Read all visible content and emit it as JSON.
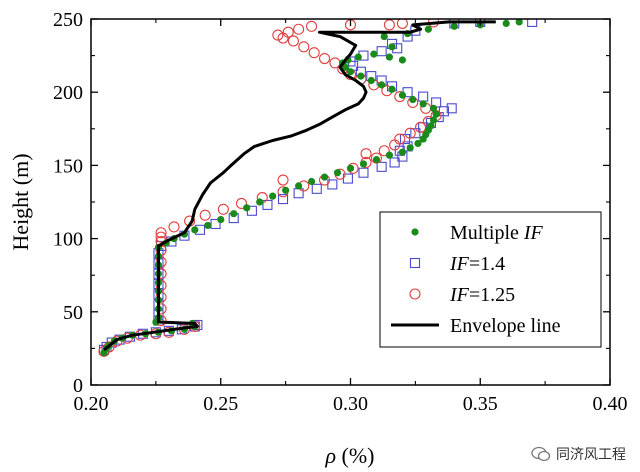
{
  "chart_data": {
    "type": "scatter",
    "xlabel_symbol": "ρ",
    "xlabel_unit": " (%)",
    "ylabel": "Height (m)",
    "xlim": [
      0.2,
      0.4
    ],
    "ylim": [
      0,
      250
    ],
    "xticks": [
      "0.20",
      "0.25",
      "0.30",
      "0.35",
      "0.40"
    ],
    "yticks": [
      "0",
      "50",
      "100",
      "150",
      "200",
      "250"
    ],
    "legend_position": "lower-right",
    "series": [
      {
        "name": "Multiple IF",
        "legend_plain": "Multiple ",
        "legend_italic": "IF",
        "legend_rest": "",
        "marker": "dot",
        "color": "#1a8a1a",
        "points": [
          [
            0.205,
            22
          ],
          [
            0.206,
            25
          ],
          [
            0.207,
            27
          ],
          [
            0.209,
            30
          ],
          [
            0.212,
            32
          ],
          [
            0.216,
            34
          ],
          [
            0.221,
            35
          ],
          [
            0.226,
            36
          ],
          [
            0.231,
            37
          ],
          [
            0.236,
            38
          ],
          [
            0.24,
            40
          ],
          [
            0.239,
            42
          ],
          [
            0.225,
            43
          ],
          [
            0.226,
            46
          ],
          [
            0.226,
            52
          ],
          [
            0.226,
            58
          ],
          [
            0.226,
            64
          ],
          [
            0.226,
            70
          ],
          [
            0.226,
            76
          ],
          [
            0.226,
            82
          ],
          [
            0.226,
            88
          ],
          [
            0.226,
            94
          ],
          [
            0.229,
            97
          ],
          [
            0.232,
            100
          ],
          [
            0.236,
            103
          ],
          [
            0.24,
            106
          ],
          [
            0.245,
            109
          ],
          [
            0.25,
            113
          ],
          [
            0.255,
            117
          ],
          [
            0.26,
            121
          ],
          [
            0.265,
            125
          ],
          [
            0.27,
            129
          ],
          [
            0.275,
            133
          ],
          [
            0.28,
            136
          ],
          [
            0.285,
            139
          ],
          [
            0.29,
            142
          ],
          [
            0.295,
            145
          ],
          [
            0.3,
            148
          ],
          [
            0.305,
            151
          ],
          [
            0.31,
            154
          ],
          [
            0.315,
            157
          ],
          [
            0.32,
            159
          ],
          [
            0.323,
            162
          ],
          [
            0.326,
            165
          ],
          [
            0.328,
            168
          ],
          [
            0.329,
            171
          ],
          [
            0.33,
            174
          ],
          [
            0.331,
            177
          ],
          [
            0.332,
            181
          ],
          [
            0.333,
            185
          ],
          [
            0.332,
            189
          ],
          [
            0.328,
            192
          ],
          [
            0.324,
            195
          ],
          [
            0.32,
            198
          ],
          [
            0.316,
            202
          ],
          [
            0.312,
            205
          ],
          [
            0.308,
            208
          ],
          [
            0.304,
            211
          ],
          [
            0.3,
            214
          ],
          [
            0.298,
            217
          ],
          [
            0.297,
            220
          ],
          [
            0.299,
            222
          ],
          [
            0.303,
            224
          ],
          [
            0.309,
            226
          ],
          [
            0.315,
            224
          ],
          [
            0.32,
            222
          ],
          [
            0.316,
            231
          ],
          [
            0.313,
            238
          ],
          [
            0.322,
            240
          ],
          [
            0.33,
            243
          ],
          [
            0.34,
            245
          ],
          [
            0.35,
            246
          ],
          [
            0.36,
            247
          ],
          [
            0.365,
            248
          ]
        ]
      },
      {
        "name": "IF=1.4",
        "legend_plain": "",
        "legend_italic": "IF",
        "legend_rest": "=1.4",
        "marker": "square",
        "color": "#4a4ad0",
        "points": [
          [
            0.205,
            24
          ],
          [
            0.206,
            26
          ],
          [
            0.208,
            29
          ],
          [
            0.211,
            31
          ],
          [
            0.215,
            33
          ],
          [
            0.22,
            35
          ],
          [
            0.225,
            36
          ],
          [
            0.23,
            37
          ],
          [
            0.235,
            38
          ],
          [
            0.24,
            40
          ],
          [
            0.241,
            41
          ],
          [
            0.226,
            44
          ],
          [
            0.226,
            48
          ],
          [
            0.226,
            55
          ],
          [
            0.226,
            62
          ],
          [
            0.226,
            69
          ],
          [
            0.226,
            76
          ],
          [
            0.226,
            83
          ],
          [
            0.226,
            90
          ],
          [
            0.227,
            95
          ],
          [
            0.231,
            98
          ],
          [
            0.236,
            102
          ],
          [
            0.242,
            106
          ],
          [
            0.248,
            110
          ],
          [
            0.255,
            114
          ],
          [
            0.262,
            119
          ],
          [
            0.268,
            123
          ],
          [
            0.274,
            127
          ],
          [
            0.28,
            131
          ],
          [
            0.287,
            134
          ],
          [
            0.293,
            137
          ],
          [
            0.299,
            141
          ],
          [
            0.305,
            145
          ],
          [
            0.312,
            149
          ],
          [
            0.317,
            152
          ],
          [
            0.32,
            156
          ],
          [
            0.319,
            160
          ],
          [
            0.322,
            163
          ],
          [
            0.321,
            168
          ],
          [
            0.325,
            172
          ],
          [
            0.328,
            176
          ],
          [
            0.331,
            179
          ],
          [
            0.334,
            183
          ],
          [
            0.336,
            187
          ],
          [
            0.339,
            189
          ],
          [
            0.333,
            193
          ],
          [
            0.328,
            197
          ],
          [
            0.322,
            200
          ],
          [
            0.316,
            204
          ],
          [
            0.312,
            208
          ],
          [
            0.308,
            211
          ],
          [
            0.304,
            214
          ],
          [
            0.301,
            218
          ],
          [
            0.3,
            221
          ],
          [
            0.305,
            225
          ],
          [
            0.312,
            228
          ],
          [
            0.318,
            230
          ],
          [
            0.316,
            233
          ],
          [
            0.322,
            238
          ],
          [
            0.325,
            242
          ],
          [
            0.34,
            247
          ],
          [
            0.35,
            248
          ],
          [
            0.37,
            248
          ]
        ]
      },
      {
        "name": "IF=1.25",
        "legend_plain": "",
        "legend_italic": "IF",
        "legend_rest": "=1.25",
        "marker": "circle",
        "color": "#e04040",
        "points": [
          [
            0.205,
            23
          ],
          [
            0.207,
            26
          ],
          [
            0.21,
            30
          ],
          [
            0.214,
            32
          ],
          [
            0.219,
            34
          ],
          [
            0.225,
            35
          ],
          [
            0.23,
            36
          ],
          [
            0.236,
            38
          ],
          [
            0.24,
            40
          ],
          [
            0.227,
            44
          ],
          [
            0.227,
            52
          ],
          [
            0.227,
            60
          ],
          [
            0.227,
            68
          ],
          [
            0.227,
            76
          ],
          [
            0.227,
            84
          ],
          [
            0.227,
            92
          ],
          [
            0.227,
            98
          ],
          [
            0.227,
            101
          ],
          [
            0.227,
            104
          ],
          [
            0.232,
            108
          ],
          [
            0.238,
            112
          ],
          [
            0.244,
            116
          ],
          [
            0.251,
            120
          ],
          [
            0.258,
            124
          ],
          [
            0.266,
            128
          ],
          [
            0.274,
            132
          ],
          [
            0.274,
            140
          ],
          [
            0.282,
            136
          ],
          [
            0.29,
            140
          ],
          [
            0.296,
            144
          ],
          [
            0.301,
            148
          ],
          [
            0.306,
            152
          ],
          [
            0.31,
            155
          ],
          [
            0.306,
            158
          ],
          [
            0.313,
            160
          ],
          [
            0.317,
            164
          ],
          [
            0.319,
            168
          ],
          [
            0.323,
            172
          ],
          [
            0.327,
            176
          ],
          [
            0.33,
            180
          ],
          [
            0.333,
            184
          ],
          [
            0.329,
            189
          ],
          [
            0.324,
            193
          ],
          [
            0.319,
            197
          ],
          [
            0.314,
            201
          ],
          [
            0.309,
            205
          ],
          [
            0.304,
            209
          ],
          [
            0.3,
            212
          ],
          [
            0.297,
            216
          ],
          [
            0.294,
            220
          ],
          [
            0.29,
            223
          ],
          [
            0.286,
            227
          ],
          [
            0.282,
            231
          ],
          [
            0.278,
            235
          ],
          [
            0.274,
            237
          ],
          [
            0.272,
            239
          ],
          [
            0.276,
            241
          ],
          [
            0.28,
            243
          ],
          [
            0.285,
            245
          ],
          [
            0.3,
            246
          ],
          [
            0.315,
            246
          ],
          [
            0.32,
            247
          ],
          [
            0.332,
            248
          ]
        ]
      },
      {
        "name": "Envelope line",
        "legend_plain": "Envelope line",
        "legend_italic": "",
        "legend_rest": "",
        "marker": "line",
        "color": "#000000",
        "points": [
          [
            0.205,
            24
          ],
          [
            0.21,
            31
          ],
          [
            0.216,
            34
          ],
          [
            0.224,
            36
          ],
          [
            0.232,
            38
          ],
          [
            0.241,
            40
          ],
          [
            0.24,
            42
          ],
          [
            0.226,
            43
          ],
          [
            0.226,
            95
          ],
          [
            0.23,
            99
          ],
          [
            0.236,
            104
          ],
          [
            0.239,
            112
          ],
          [
            0.24,
            120
          ],
          [
            0.243,
            130
          ],
          [
            0.246,
            138
          ],
          [
            0.251,
            145
          ],
          [
            0.254,
            150
          ],
          [
            0.259,
            158
          ],
          [
            0.263,
            163
          ],
          [
            0.27,
            167
          ],
          [
            0.277,
            170
          ],
          [
            0.283,
            174
          ],
          [
            0.288,
            178
          ],
          [
            0.293,
            183
          ],
          [
            0.298,
            188
          ],
          [
            0.303,
            192
          ],
          [
            0.305,
            196
          ],
          [
            0.306,
            200
          ],
          [
            0.305,
            204
          ],
          [
            0.302,
            208
          ],
          [
            0.298,
            212
          ],
          [
            0.296,
            217
          ],
          [
            0.298,
            222
          ],
          [
            0.3,
            226
          ],
          [
            0.302,
            232
          ],
          [
            0.296,
            238
          ],
          [
            0.288,
            241
          ],
          [
            0.303,
            241
          ],
          [
            0.323,
            241
          ],
          [
            0.327,
            243
          ],
          [
            0.324,
            246
          ],
          [
            0.338,
            248
          ],
          [
            0.356,
            248
          ]
        ]
      }
    ]
  },
  "watermark": {
    "text": "同济风工程"
  }
}
